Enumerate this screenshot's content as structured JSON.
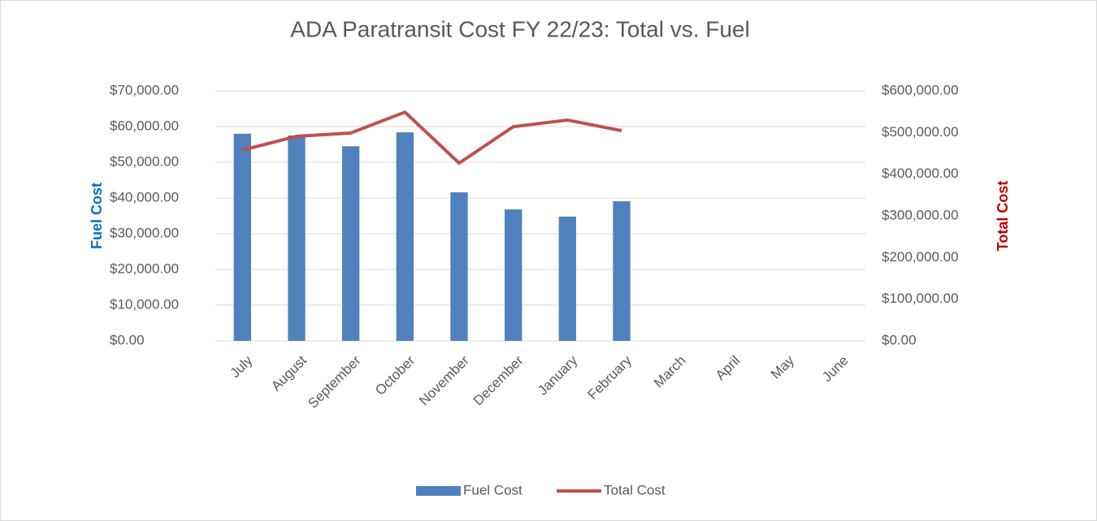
{
  "chart_data": {
    "type": "bar_line",
    "title": "ADA Paratransit Cost FY 22/23: Total vs. Fuel",
    "y_label": "Fuel Cost",
    "y2_label": "Total Cost",
    "categories": [
      "July",
      "August",
      "September",
      "October",
      "November",
      "December",
      "January",
      "February",
      "March",
      "April",
      "May",
      "June"
    ],
    "series": [
      {
        "name": "Fuel Cost",
        "color": "#4f81bd",
        "type": "bar",
        "values": [
          58000,
          57500,
          54500,
          58400,
          41600,
          36800,
          34800,
          39100,
          null,
          null,
          null,
          null
        ]
      },
      {
        "name": "Total Cost",
        "color": "#c0504d",
        "type": "line",
        "axis": "y2",
        "values": [
          458000,
          491000,
          499000,
          549000,
          426600,
          514000,
          530000,
          504500,
          null,
          null,
          null,
          null
        ]
      }
    ],
    "ylim": [
      0,
      70000
    ],
    "yticks": [
      {
        "value": 0,
        "label": "$0.00"
      },
      {
        "value": 10000,
        "label": "$10,000.00"
      },
      {
        "value": 20000,
        "label": "$20,000.00"
      },
      {
        "value": 30000,
        "label": "$30,000.00"
      },
      {
        "value": 40000,
        "label": "$40,000.00"
      },
      {
        "value": 50000,
        "label": "$50,000.00"
      },
      {
        "value": 60000,
        "label": "$60,000.00"
      },
      {
        "value": 70000,
        "label": "$70,000.00"
      }
    ],
    "y2lim": [
      0,
      600000
    ],
    "y2ticks": [
      {
        "value": 0,
        "label": "$0.00"
      },
      {
        "value": 100000,
        "label": "$100,000.00"
      },
      {
        "value": 200000,
        "label": "$200,000.00"
      },
      {
        "value": 300000,
        "label": "$300,000.00"
      },
      {
        "value": 400000,
        "label": "$400,000.00"
      },
      {
        "value": 500000,
        "label": "$500,000.00"
      },
      {
        "value": 600000,
        "label": "$600,000.00"
      }
    ],
    "grid": true,
    "legend": "bottom"
  }
}
